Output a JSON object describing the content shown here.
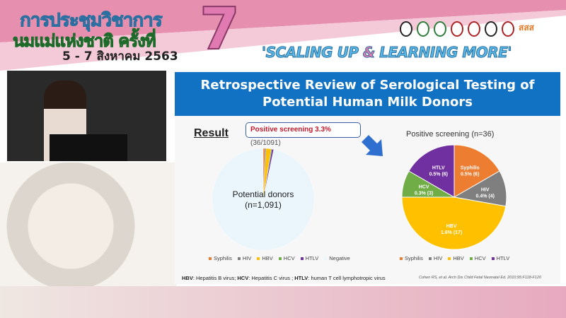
{
  "banner": {
    "conference_line1": "การประชุมวิชาการ",
    "conference_line2": "นมแม่แห่งชาติ ครั้งที่",
    "dates": "5 - 7 สิงหาคม 2563",
    "edition": "7",
    "slogan_a": "'SCALING UP ",
    "slogan_amp": "&",
    "slogan_b": " LEARNING MORE'",
    "logo_text": "สสส"
  },
  "slide": {
    "title_line1": "Retrospective Review of Serological Testing of",
    "title_line2": "Potential Human Milk Donors",
    "result_heading": "Result",
    "callout_bold": "Positive screening 3.3%",
    "callout_rest": " (36/1091)",
    "footnote": [
      {
        "abbr": "HBV",
        "text": ": Hepatitis B virus; "
      },
      {
        "abbr": "HCV",
        "text": ": Hepatitis C virus ; "
      },
      {
        "abbr": "HTLV",
        "text": ": human T cell lymphotropic virus"
      }
    ],
    "citation": "Cohen RS, et al. Arch Dis Child Fetal Neonatal Ed. 2010;95:F118-F120"
  },
  "chart_data": [
    {
      "type": "pie",
      "center_label_line1": "Potential donors",
      "center_label_line2": "(n=1,091)",
      "categories": [
        "Syphilis",
        "HIV",
        "HBV",
        "HCV",
        "HTLV",
        "Negative"
      ],
      "values": [
        6,
        4,
        17,
        3,
        6,
        1055
      ],
      "colors": [
        "#ed7d31",
        "#7f7f7f",
        "#ffc000",
        "#70ad47",
        "#7030a0",
        "#eaf6fb"
      ],
      "legend": "bottom"
    },
    {
      "type": "pie",
      "title": "Positive screening (n=36)",
      "categories": [
        "Syphilis",
        "HIV",
        "HBV",
        "HCV",
        "HTLV"
      ],
      "values": [
        6,
        4,
        17,
        3,
        6
      ],
      "labels": [
        "0.5% (6)",
        "0.4% (4)",
        "1.6% (17)",
        "0.3% (3)",
        "0.5% (6)"
      ],
      "colors": [
        "#ed7d31",
        "#7f7f7f",
        "#ffc000",
        "#70ad47",
        "#7030a0"
      ],
      "legend": "bottom"
    }
  ]
}
